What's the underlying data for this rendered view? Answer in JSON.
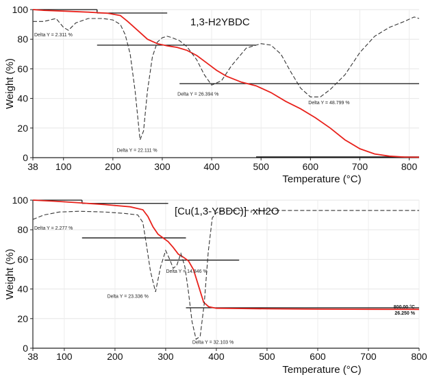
{
  "chart_data": [
    {
      "type": "line",
      "title": "1,3-H2YBDC",
      "xlabel": "Temperature (°C)",
      "ylabel": "Weight (%)",
      "xlim": [
        38,
        820
      ],
      "ylim": [
        0,
        100
      ],
      "xticks": [
        38,
        100,
        200,
        300,
        400,
        500,
        600,
        700,
        800
      ],
      "yticks": [
        0,
        20,
        40,
        60,
        80,
        100
      ],
      "series": [
        {
          "line_style": "solid",
          "color": "#e8211b",
          "x": [
            38,
            60,
            100,
            150,
            190,
            215,
            230,
            250,
            270,
            290,
            310,
            330,
            350,
            370,
            390,
            410,
            430,
            460,
            490,
            520,
            550,
            580,
            610,
            640,
            670,
            700,
            730,
            760,
            790,
            820
          ],
          "y": [
            100,
            99.5,
            99,
            98.3,
            97.5,
            96,
            92,
            86,
            80,
            77,
            75.5,
            74.5,
            72.5,
            69,
            64,
            59,
            55,
            51,
            48.5,
            44,
            38,
            33,
            27,
            20,
            12,
            6,
            2.5,
            1,
            0.4,
            0.3
          ]
        },
        {
          "line_style": "dashed",
          "color": "#333333",
          "x": [
            38,
            60,
            85,
            100,
            110,
            125,
            150,
            180,
            200,
            215,
            225,
            235,
            245,
            255,
            262,
            270,
            280,
            290,
            300,
            310,
            320,
            335,
            350,
            370,
            385,
            400,
            420,
            440,
            470,
            500,
            520,
            540,
            560,
            580,
            600,
            620,
            640,
            670,
            700,
            730,
            760,
            790,
            810,
            820
          ],
          "y": [
            92,
            92,
            94,
            88,
            86,
            91,
            94,
            94,
            93,
            90,
            83,
            70,
            45,
            12,
            18,
            45,
            68,
            78,
            81,
            82,
            81,
            79,
            75,
            66,
            56,
            49,
            52,
            62,
            74,
            77,
            76,
            70,
            58,
            47,
            41,
            41,
            46,
            56,
            71,
            82,
            88,
            92,
            95,
            94
          ]
        }
      ],
      "annotations": [
        {
          "text": "Delta Y = 2.311 %",
          "x": 38,
          "y": 82
        },
        {
          "text": "Delta Y = 22.111 %",
          "x": 205,
          "y": 4
        },
        {
          "text": "Delta Y = 26.394 %",
          "x": 328,
          "y": 42
        },
        {
          "text": "Delta Y = 48.799 %",
          "x": 593,
          "y": 36
        }
      ],
      "step_lines": [
        {
          "y": 100,
          "x1": 38,
          "x2": 168
        },
        {
          "y": 97.7,
          "x1": 168,
          "x2": 310
        },
        {
          "y": 76,
          "x1": 168,
          "x2": 490
        },
        {
          "y": 50,
          "x1": 335,
          "x2": 820
        },
        {
          "y": 0.5,
          "x1": 490,
          "x2": 820
        }
      ]
    },
    {
      "type": "line",
      "title": "[Cu(1,3-YBDC)] ·xH2O",
      "xlabel": "Temperature (°C)",
      "ylabel": "Weight (%)",
      "xlim": [
        38,
        800
      ],
      "ylim": [
        0,
        100
      ],
      "xticks": [
        38,
        100,
        200,
        300,
        400,
        500,
        600,
        700,
        800
      ],
      "yticks": [
        0,
        20,
        40,
        60,
        80,
        100
      ],
      "series": [
        {
          "line_style": "solid",
          "color": "#e8211b",
          "x": [
            38,
            80,
            130,
            180,
            230,
            255,
            265,
            275,
            285,
            295,
            305,
            315,
            325,
            335,
            345,
            355,
            365,
            375,
            385,
            400,
            450,
            500,
            600,
            700,
            800
          ],
          "y": [
            100,
            99.3,
            98.2,
            97,
            95.5,
            93.5,
            89,
            82,
            77,
            74.5,
            72,
            68,
            63.5,
            61.5,
            59,
            53,
            42,
            31,
            28,
            27,
            26.8,
            26.6,
            26.4,
            26.3,
            26.25
          ]
        },
        {
          "line_style": "dashed",
          "color": "#333333",
          "x": [
            38,
            60,
            90,
            130,
            180,
            220,
            245,
            255,
            262,
            270,
            280,
            290,
            300,
            308,
            315,
            322,
            330,
            338,
            345,
            352,
            360,
            368,
            376,
            384,
            392,
            400,
            410,
            430,
            500,
            600,
            700,
            800
          ],
          "y": [
            87,
            90,
            92,
            92.5,
            92,
            91,
            90,
            85,
            70,
            52,
            38,
            55,
            66,
            60,
            54,
            56,
            64,
            55,
            38,
            18,
            6,
            8,
            30,
            65,
            88,
            91.5,
            92.5,
            93,
            93,
            93,
            93,
            93
          ]
        }
      ],
      "annotations": [
        {
          "text": "Delta Y = 2.277 %",
          "x": 38,
          "y": 80
        },
        {
          "text": "Delta Y = 23.336 %",
          "x": 182,
          "y": 34
        },
        {
          "text": "Delta Y = 14.846 %",
          "x": 298,
          "y": 51
        },
        {
          "text": "Delta Y = 32.103 %",
          "x": 350,
          "y": 3
        }
      ],
      "end_label": {
        "temp": "800.00 °C",
        "weight": "26.250 %",
        "x": 800,
        "y": 26
      },
      "step_lines": [
        {
          "y": 100,
          "x1": 38,
          "x2": 135
        },
        {
          "y": 97.8,
          "x1": 135,
          "x2": 305
        },
        {
          "y": 74.5,
          "x1": 135,
          "x2": 340
        },
        {
          "y": 59.5,
          "x1": 298,
          "x2": 445
        },
        {
          "y": 27.3,
          "x1": 340,
          "x2": 800
        }
      ]
    }
  ]
}
